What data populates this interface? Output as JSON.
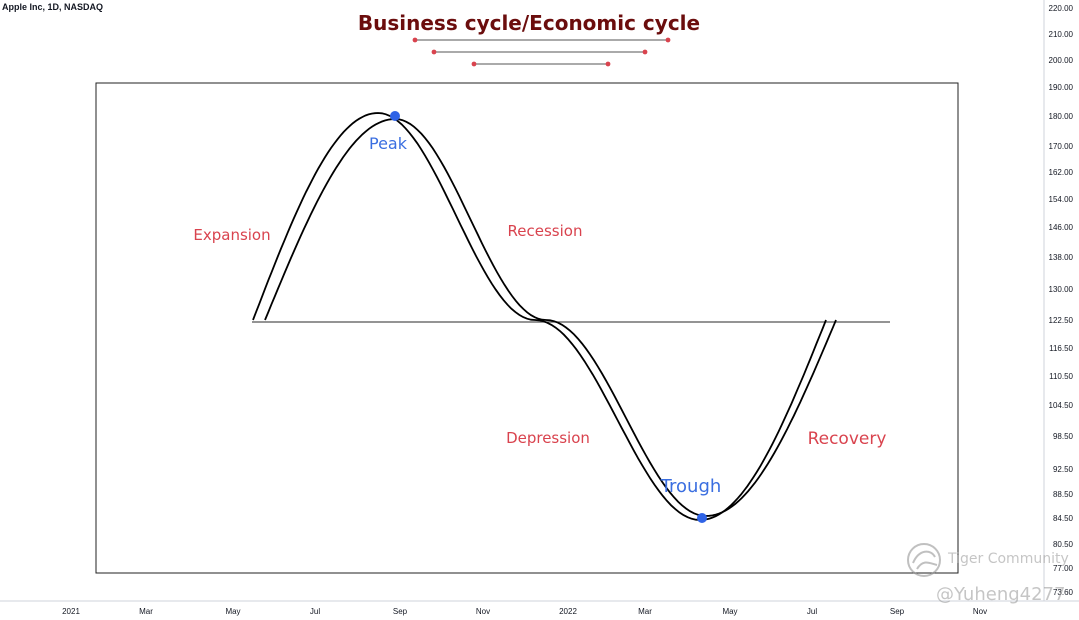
{
  "header": {
    "symbol": "Apple Inc, 1D, NASDAQ"
  },
  "price_axis": {
    "ticks": [
      "220.00",
      "210.00",
      "200.00",
      "190.00",
      "180.00",
      "170.00",
      "162.00",
      "154.00",
      "146.00",
      "138.00",
      "130.00",
      "122.50",
      "116.50",
      "110.50",
      "104.50",
      "98.50",
      "92.50",
      "88.50",
      "84.50",
      "80.50",
      "77.00",
      "73.60"
    ]
  },
  "time_axis": {
    "ticks": [
      "2021",
      "Mar",
      "May",
      "Jul",
      "Sep",
      "Nov",
      "2022",
      "Mar",
      "May",
      "Jul",
      "Sep",
      "Nov"
    ]
  },
  "watermark": {
    "community": "Tiger Community",
    "user": "@Yuheng4277"
  },
  "colors": {
    "title": "#6b0d0d",
    "phase_label": "#d9434e",
    "point_label": "#3a6ee0",
    "point": "#2f63e6",
    "line": "#000000",
    "baseline": "#555555",
    "deco": "#d9434e"
  },
  "chart_data": {
    "type": "line",
    "title": "Business cycle/Economic cycle",
    "description_type": "conceptual sine-shaped business cycle curve",
    "xlabel": "",
    "ylabel": "",
    "phases": [
      "Expansion",
      "Recession",
      "Depression",
      "Recovery"
    ],
    "points": [
      {
        "name": "Peak",
        "month": "Sep 2021",
        "price": 180.0
      },
      {
        "name": "Trough",
        "month": "May 2022",
        "price": 84.5
      }
    ],
    "baseline_price": 122.5
  }
}
